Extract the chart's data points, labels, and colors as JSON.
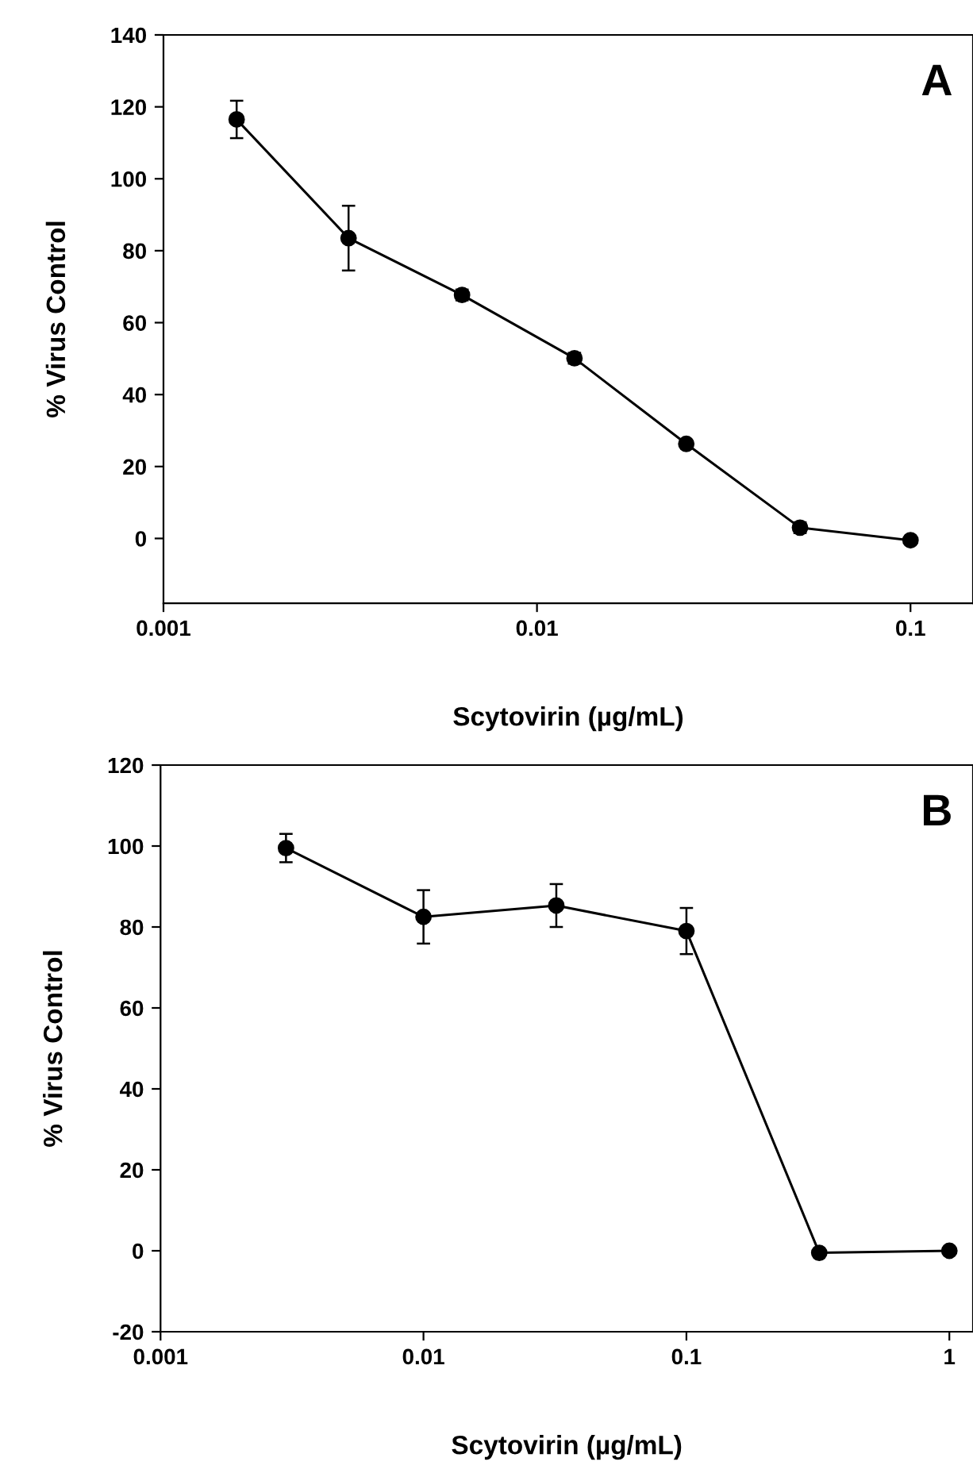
{
  "chart_data": [
    {
      "type": "line",
      "xlabel": "Scytovirin (µg/mL)",
      "ylabel": "% Virus Control",
      "annotations": [
        "A"
      ],
      "log": "x",
      "marker": "circle",
      "line_style": "solid",
      "grid": false,
      "xlim": [
        0.001,
        0.147
      ],
      "xticks": [
        0.001,
        0.01,
        0.1
      ],
      "ylim": [
        -18,
        140
      ],
      "yticks": [
        0,
        20,
        40,
        60,
        80,
        100,
        120,
        140
      ],
      "series": [
        {
          "color": "#000000",
          "x": [
            0.00157,
            0.00313,
            0.0063,
            0.0126,
            0.0251,
            0.0506,
            0.1
          ],
          "values": [
            116.5,
            83.5,
            67.7,
            50.1,
            26.3,
            3,
            -0.5
          ],
          "errors": [
            5.2,
            9,
            1.5,
            1.5,
            null,
            1.5,
            null
          ]
        }
      ]
    },
    {
      "type": "line",
      "xlabel": "Scytovirin (µg/mL)",
      "ylabel": "% Virus Control",
      "annotations": [
        "B"
      ],
      "log": "x",
      "marker": "circle",
      "line_style": "solid",
      "grid": false,
      "xlim": [
        0.001,
        1.23
      ],
      "xticks": [
        0.001,
        0.01,
        0.1,
        1
      ],
      "ylim": [
        -20,
        120
      ],
      "yticks": [
        -20,
        0,
        20,
        40,
        60,
        80,
        100,
        120
      ],
      "series": [
        {
          "color": "#000000",
          "x": [
            0.003,
            0.01,
            0.032,
            0.1,
            0.32,
            1
          ],
          "values": [
            99.5,
            82.5,
            85.3,
            79,
            -0.5,
            0
          ],
          "errors": [
            3.5,
            6.6,
            5.3,
            5.7,
            null,
            null
          ]
        }
      ]
    }
  ]
}
